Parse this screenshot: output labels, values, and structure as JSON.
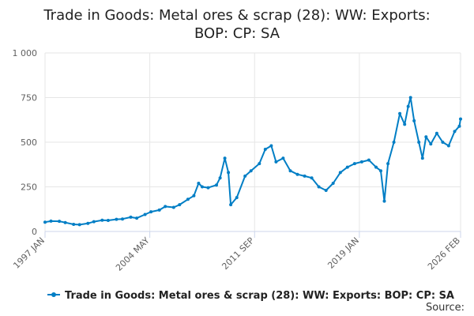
{
  "chart_data": {
    "type": "line",
    "title_lines": [
      "Trade in Goods: Metal ores & scrap (28): WW: Exports:",
      "BOP: CP: SA"
    ],
    "xlabel": "",
    "ylabel": "",
    "y_ticks": [
      0,
      250,
      500,
      750,
      1000
    ],
    "y_tick_labels": [
      "0",
      "250",
      "500",
      "750",
      "1 000"
    ],
    "ylim": [
      0,
      1000
    ],
    "x_tick_labels": [
      "1997 JAN",
      "2004 MAY",
      "2011 SEP",
      "2019 JAN",
      "2026 FEB"
    ],
    "x_tick_dates": [
      "1997-01",
      "2004-05",
      "2011-09",
      "2019-01",
      "2026-02"
    ],
    "xlim": [
      "1997-01",
      "2026-02"
    ],
    "grid": true,
    "legend_position": "bottom",
    "series": [
      {
        "name": "Trade in Goods: Metal ores & scrap (28): WW: Exports: BOP: CP: SA",
        "color": "#007ec5",
        "points": [
          [
            "1997-01",
            52
          ],
          [
            "1997-06",
            58
          ],
          [
            "1998-01",
            57
          ],
          [
            "1998-06",
            50
          ],
          [
            "1999-01",
            40
          ],
          [
            "1999-06",
            38
          ],
          [
            "2000-01",
            45
          ],
          [
            "2000-06",
            55
          ],
          [
            "2001-01",
            63
          ],
          [
            "2001-06",
            62
          ],
          [
            "2002-01",
            68
          ],
          [
            "2002-06",
            70
          ],
          [
            "2003-01",
            80
          ],
          [
            "2003-06",
            75
          ],
          [
            "2004-01",
            95
          ],
          [
            "2004-06",
            110
          ],
          [
            "2005-01",
            120
          ],
          [
            "2005-06",
            140
          ],
          [
            "2006-01",
            135
          ],
          [
            "2006-06",
            150
          ],
          [
            "2007-01",
            180
          ],
          [
            "2007-06",
            200
          ],
          [
            "2007-10",
            270
          ],
          [
            "2008-01",
            250
          ],
          [
            "2008-06",
            245
          ],
          [
            "2009-01",
            260
          ],
          [
            "2009-04",
            300
          ],
          [
            "2009-08",
            410
          ],
          [
            "2009-11",
            330
          ],
          [
            "2010-01",
            150
          ],
          [
            "2010-06",
            190
          ],
          [
            "2011-01",
            310
          ],
          [
            "2011-06",
            340
          ],
          [
            "2012-01",
            380
          ],
          [
            "2012-06",
            460
          ],
          [
            "2012-11",
            480
          ],
          [
            "2013-03",
            390
          ],
          [
            "2013-09",
            410
          ],
          [
            "2014-03",
            340
          ],
          [
            "2014-09",
            320
          ],
          [
            "2015-03",
            310
          ],
          [
            "2015-09",
            300
          ],
          [
            "2016-03",
            250
          ],
          [
            "2016-09",
            230
          ],
          [
            "2017-03",
            270
          ],
          [
            "2017-09",
            330
          ],
          [
            "2018-03",
            360
          ],
          [
            "2018-09",
            380
          ],
          [
            "2019-03",
            390
          ],
          [
            "2019-09",
            400
          ],
          [
            "2020-03",
            360
          ],
          [
            "2020-07",
            340
          ],
          [
            "2020-10",
            170
          ],
          [
            "2021-01",
            380
          ],
          [
            "2021-06",
            500
          ],
          [
            "2021-11",
            660
          ],
          [
            "2022-03",
            600
          ],
          [
            "2022-06",
            700
          ],
          [
            "2022-08",
            750
          ],
          [
            "2022-11",
            620
          ],
          [
            "2023-03",
            500
          ],
          [
            "2023-06",
            410
          ],
          [
            "2023-09",
            530
          ],
          [
            "2024-01",
            490
          ],
          [
            "2024-06",
            550
          ],
          [
            "2024-11",
            500
          ],
          [
            "2025-04",
            480
          ],
          [
            "2025-09",
            560
          ],
          [
            "2026-01",
            590
          ],
          [
            "2026-02",
            630
          ]
        ]
      }
    ]
  },
  "footer": {
    "source_label": "Source:"
  }
}
